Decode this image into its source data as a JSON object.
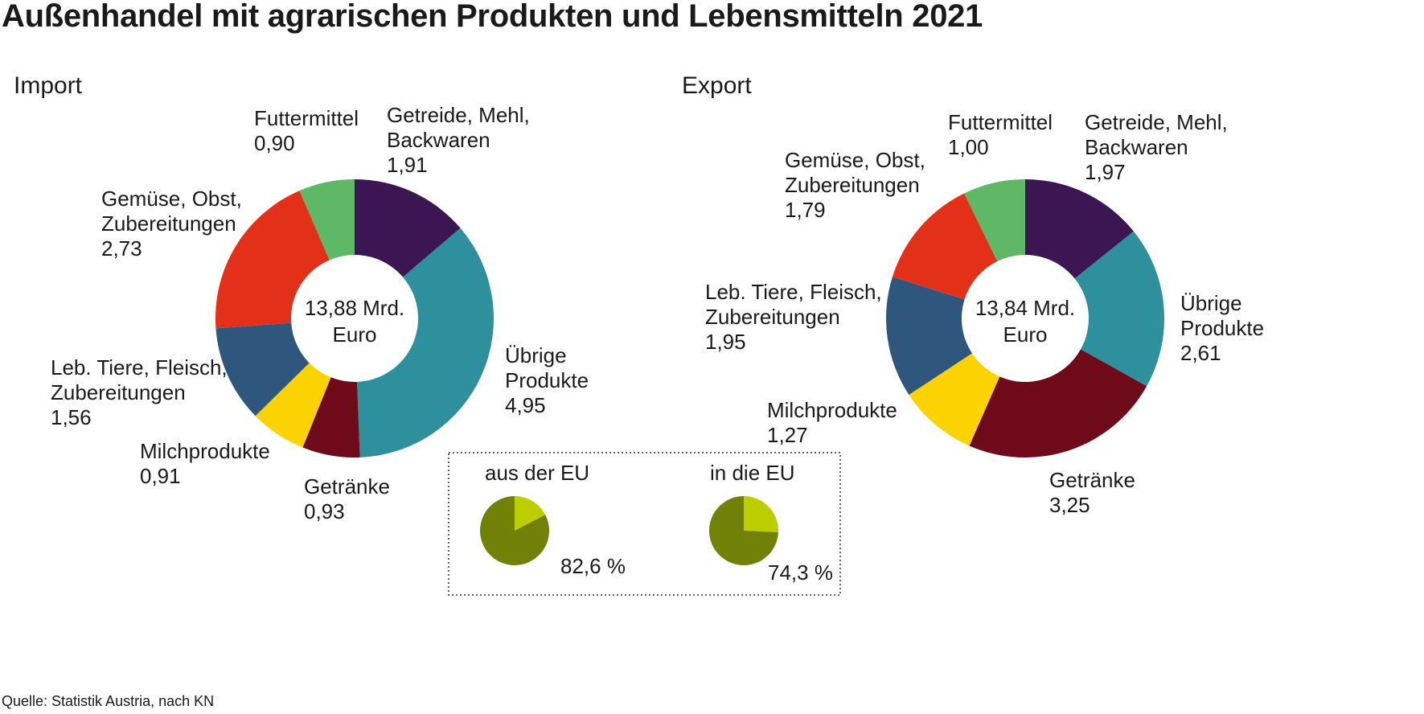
{
  "title": "Außenhandel mit agrarischen Produkten und Lebensmitteln 2021",
  "source": "Quelle: Statistik Austria, nach KN",
  "colors": {
    "getreide": "#3b1652",
    "uebrige": "#2e8f9d",
    "getraenke": "#6e0a1a",
    "milch": "#fbd302",
    "tiere": "#2f567c",
    "gemuese": "#e23118",
    "futter": "#5fb865",
    "eu_share": "#718107",
    "non_eu_share": "#bccd00"
  },
  "chart_data": [
    {
      "type": "pie",
      "title": "Import",
      "center_label": [
        "13,88 Mrd.",
        "Euro"
      ],
      "slices": [
        {
          "label": "Getreide, Mehl, Backwaren",
          "display": "1,91",
          "value": 1.91,
          "color_key": "getreide"
        },
        {
          "label": "Übrige Produkte",
          "display": "4,95",
          "value": 4.95,
          "color_key": "uebrige"
        },
        {
          "label": "Getränke",
          "display": "0,93",
          "value": 0.93,
          "color_key": "getraenke"
        },
        {
          "label": "Milchprodukte",
          "display": "0,91",
          "value": 0.91,
          "color_key": "milch"
        },
        {
          "label": "Leb. Tiere, Fleisch, Zubereitungen",
          "display": "1,56",
          "value": 1.56,
          "color_key": "tiere"
        },
        {
          "label": "Gemüse, Obst, Zubereitungen",
          "display": "2,73",
          "value": 2.73,
          "color_key": "gemuese"
        },
        {
          "label": "Futtermittel",
          "display": "0,90",
          "value": 0.9,
          "color_key": "futter"
        }
      ]
    },
    {
      "type": "pie",
      "title": "Export",
      "center_label": [
        "13,84 Mrd.",
        "Euro"
      ],
      "slices": [
        {
          "label": "Getreide, Mehl, Backwaren",
          "display": "1,97",
          "value": 1.97,
          "color_key": "getreide"
        },
        {
          "label": "Übrige Produkte",
          "display": "2,61",
          "value": 2.61,
          "color_key": "uebrige"
        },
        {
          "label": "Getränke",
          "display": "3,25",
          "value": 3.25,
          "color_key": "getraenke"
        },
        {
          "label": "Milchprodukte",
          "display": "1,27",
          "value": 1.27,
          "color_key": "milch"
        },
        {
          "label": "Leb. Tiere, Fleisch, Zubereitungen",
          "display": "1,95",
          "value": 1.95,
          "color_key": "tiere"
        },
        {
          "label": "Gemüse, Obst, Zubereitungen",
          "display": "1,79",
          "value": 1.79,
          "color_key": "gemuese"
        },
        {
          "label": "Futtermittel",
          "display": "1,00",
          "value": 1.0,
          "color_key": "futter"
        }
      ]
    },
    {
      "type": "pie",
      "title": "aus der EU",
      "share": 82.6,
      "display": "82,6 %"
    },
    {
      "type": "pie",
      "title": "in die EU",
      "share": 74.3,
      "display": "74,3 %"
    }
  ]
}
